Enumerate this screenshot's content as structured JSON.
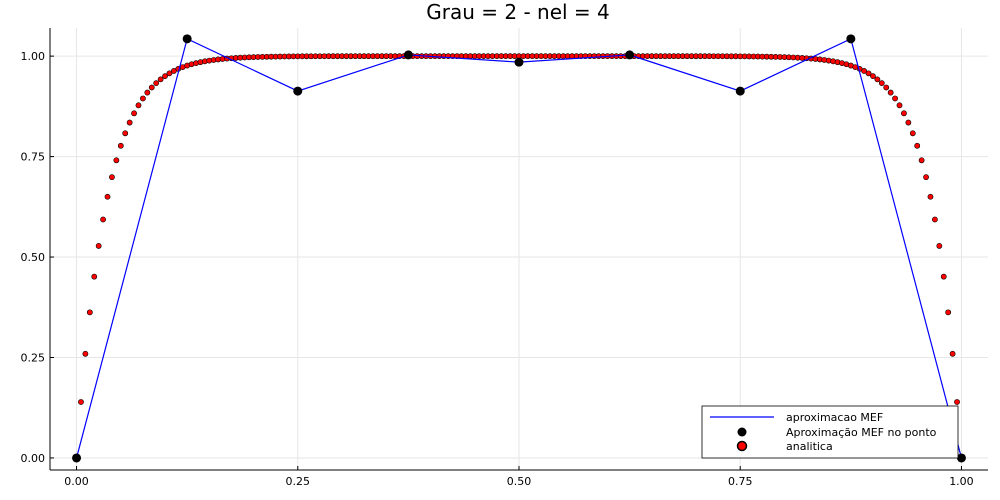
{
  "chart_data": {
    "type": "line",
    "title": "Grau = 2 - nel = 4",
    "xlabel": "",
    "ylabel": "",
    "xlim": [
      -0.03,
      1.03
    ],
    "ylim": [
      -0.03,
      1.07
    ],
    "xticks": [
      0.0,
      0.25,
      0.5,
      0.75,
      1.0
    ],
    "xtick_labels": [
      "0.00",
      "0.25",
      "0.50",
      "0.75",
      "1.00"
    ],
    "yticks": [
      0.0,
      0.25,
      0.5,
      0.75,
      1.0
    ],
    "ytick_labels": [
      "0.00",
      "0.25",
      "0.50",
      "0.75",
      "1.00"
    ],
    "grid": true,
    "legend_position": "bottom-right",
    "series": [
      {
        "name": "aproximacao MEF",
        "kind": "line",
        "color": "#0000ff",
        "x": [
          0.0,
          0.125,
          0.25,
          0.375,
          0.5,
          0.625,
          0.75,
          0.875,
          1.0
        ],
        "y": [
          0.0,
          1.043,
          0.913,
          1.003,
          0.985,
          1.003,
          0.913,
          1.043,
          0.0
        ]
      },
      {
        "name": "Aproximação MEF no ponto",
        "kind": "scatter",
        "color": "#000000",
        "x": [
          0.0,
          0.125,
          0.25,
          0.375,
          0.5,
          0.625,
          0.75,
          0.875,
          1.0
        ],
        "y": [
          0.0,
          1.043,
          0.913,
          1.003,
          0.985,
          1.003,
          0.913,
          1.043,
          0.0
        ]
      },
      {
        "name": "analitica",
        "kind": "scatter",
        "color": "#ff0000",
        "edge_color": "#000000",
        "function": "y = 1 - exp(-k*x) - exp(-k*(1-x)), k = 30 (read off the curve)",
        "k": 30,
        "n_points": 201,
        "x_range": [
          0.0,
          1.0
        ]
      }
    ]
  }
}
